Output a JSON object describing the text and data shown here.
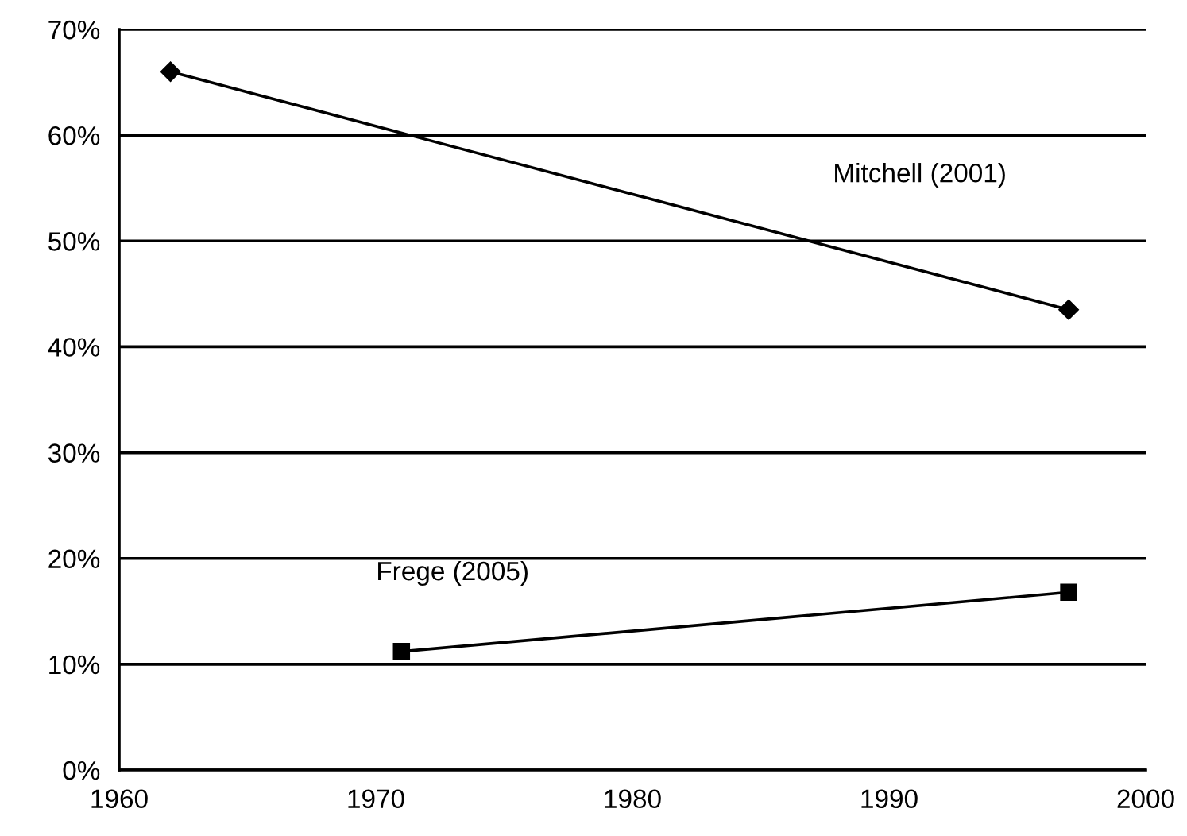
{
  "chart_data": {
    "type": "line",
    "series": [
      {
        "name": "Mitchell (2001)",
        "color": "#000000",
        "marker": "diamond",
        "x": [
          1962,
          1997
        ],
        "values": [
          66,
          43.5
        ]
      },
      {
        "name": "Frege (2005)",
        "color": "#000000",
        "marker": "square",
        "x": [
          1971,
          1997
        ],
        "values": [
          11.2,
          16.8
        ]
      }
    ],
    "xlim": [
      1960,
      2000
    ],
    "xticks": [
      1960,
      1970,
      1980,
      1990,
      2000
    ],
    "ylim": [
      0,
      70
    ],
    "yticks": [
      {
        "value": 0,
        "label": "0%"
      },
      {
        "value": 10,
        "label": "10%"
      },
      {
        "value": 20,
        "label": "20%"
      },
      {
        "value": 30,
        "label": "30%"
      },
      {
        "value": 40,
        "label": "40%"
      },
      {
        "value": 50,
        "label": "50%"
      },
      {
        "value": 60,
        "label": "60%"
      },
      {
        "value": 70,
        "label": "70%"
      }
    ],
    "grid": "y",
    "line_style": "solid",
    "legend": false
  }
}
